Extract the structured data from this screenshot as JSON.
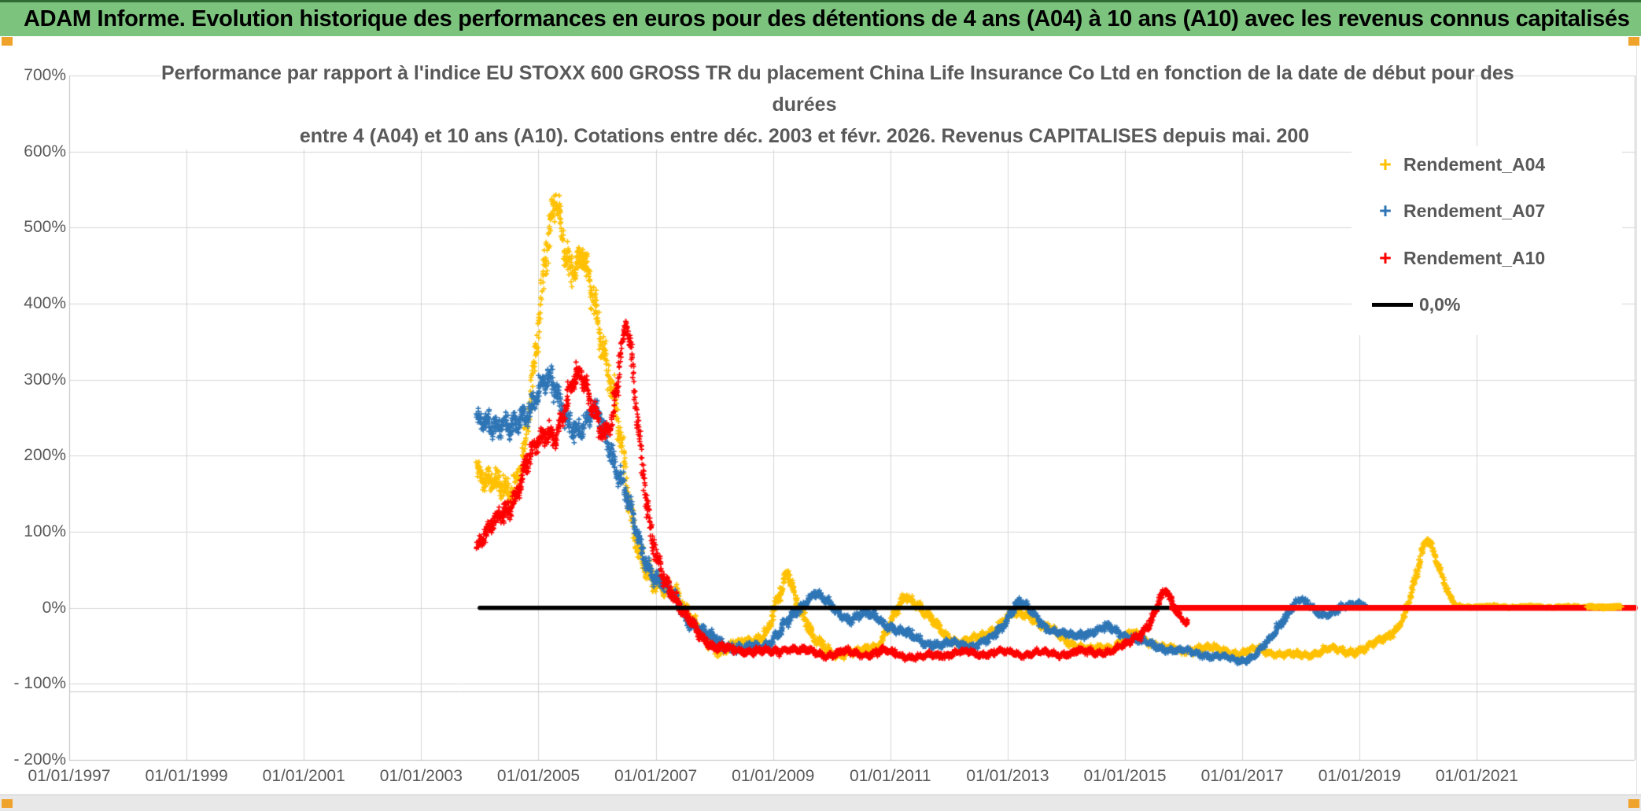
{
  "banner": {
    "text": "ADAM Informe. Evolution historique des performances en euros pour des détentions de 4 ans (A04) à 10 ans (A10) avec les revenus connus capitalisés",
    "bg_color": "#7CC47E"
  },
  "chart_data": {
    "type": "scatter",
    "title_lines": [
      "Performance par rapport à l'indice EU STOXX 600 GROSS TR  du placement China Life Insurance Co Ltd en fonction de la date de début pour des",
      "durées",
      "entre 4 (A04) et 10 ans (A10). Cotations entre déc. 2003 et févr. 2026. Revenus CAPITALISES depuis mai. 200"
    ],
    "x_range": [
      1997,
      2023.69
    ],
    "y_range": [
      -200,
      700
    ],
    "grid": true,
    "legend_position": "right-top",
    "x_ticks": [
      {
        "label": "01/01/1997",
        "year": 1997
      },
      {
        "label": "01/01/1999",
        "year": 1999
      },
      {
        "label": "01/01/2001",
        "year": 2001
      },
      {
        "label": "01/01/2003",
        "year": 2003
      },
      {
        "label": "01/01/2005",
        "year": 2005
      },
      {
        "label": "01/01/2007",
        "year": 2007
      },
      {
        "label": "01/01/2009",
        "year": 2009
      },
      {
        "label": "01/01/2011",
        "year": 2011
      },
      {
        "label": "01/01/2013",
        "year": 2013
      },
      {
        "label": "01/01/2015",
        "year": 2015
      },
      {
        "label": "01/01/2017",
        "year": 2017
      },
      {
        "label": "01/01/2019",
        "year": 2019
      },
      {
        "label": "01/01/2021",
        "year": 2021
      }
    ],
    "y_ticks": [
      {
        "label": "700%",
        "value": 700
      },
      {
        "label": "600%",
        "value": 600
      },
      {
        "label": "500%",
        "value": 500
      },
      {
        "label": "400%",
        "value": 400
      },
      {
        "label": "300%",
        "value": 300
      },
      {
        "label": "200%",
        "value": 200
      },
      {
        "label": "100%",
        "value": 100
      },
      {
        "label": "0%",
        "value": 0
      },
      {
        "label": "- 100%",
        "value": -100
      },
      {
        "label": "- 200%",
        "value": -200
      }
    ],
    "legend": [
      {
        "label": "Rendement_A04",
        "color": "#FFC000",
        "type": "marker"
      },
      {
        "label": "Rendement_A07",
        "color": "#2E75B6",
        "type": "marker"
      },
      {
        "label": "Rendement_A10",
        "color": "#FF0000",
        "type": "marker"
      },
      {
        "label": "0,0%",
        "color": "#000000",
        "type": "line"
      }
    ],
    "series": [
      {
        "name": "Rendement_A04",
        "color": "#FFC000",
        "marker": "+",
        "phase": 1,
        "density": 260,
        "seed": 11,
        "anchors": [
          [
            2003.95,
            190,
            35
          ],
          [
            2004.15,
            170,
            30
          ],
          [
            2004.35,
            155,
            30
          ],
          [
            2004.55,
            150,
            35
          ],
          [
            2004.75,
            215,
            40
          ],
          [
            2004.95,
            320,
            45
          ],
          [
            2005.1,
            440,
            50
          ],
          [
            2005.2,
            505,
            45
          ],
          [
            2005.3,
            550,
            40
          ],
          [
            2005.4,
            505,
            45
          ],
          [
            2005.5,
            455,
            40
          ],
          [
            2005.62,
            435,
            35
          ],
          [
            2005.75,
            455,
            35
          ],
          [
            2005.88,
            430,
            40
          ],
          [
            2006.0,
            395,
            40
          ],
          [
            2006.15,
            330,
            45
          ],
          [
            2006.35,
            235,
            45
          ],
          [
            2006.55,
            135,
            40
          ],
          [
            2006.75,
            75,
            30
          ],
          [
            2006.95,
            30,
            25
          ],
          [
            2007.15,
            20,
            20
          ],
          [
            2007.35,
            25,
            20
          ],
          [
            2007.55,
            -10,
            18
          ],
          [
            2007.8,
            -40,
            15
          ],
          [
            2008.1,
            -55,
            12
          ],
          [
            2008.5,
            -48,
            12
          ],
          [
            2008.9,
            -32,
            14
          ],
          [
            2009.1,
            10,
            20
          ],
          [
            2009.25,
            48,
            15
          ],
          [
            2009.45,
            5,
            18
          ],
          [
            2009.7,
            -45,
            14
          ],
          [
            2010.0,
            -58,
            10
          ],
          [
            2010.4,
            -60,
            9
          ],
          [
            2010.8,
            -48,
            10
          ],
          [
            2011.05,
            -15,
            14
          ],
          [
            2011.25,
            15,
            12
          ],
          [
            2011.45,
            8,
            12
          ],
          [
            2011.65,
            -12,
            12
          ],
          [
            2011.9,
            -35,
            10
          ],
          [
            2012.2,
            -45,
            10
          ],
          [
            2012.55,
            -40,
            10
          ],
          [
            2012.85,
            -22,
            10
          ],
          [
            2013.1,
            -8,
            10
          ],
          [
            2013.4,
            -10,
            10
          ],
          [
            2013.7,
            -28,
            10
          ],
          [
            2014.05,
            -45,
            9
          ],
          [
            2014.45,
            -57,
            8
          ],
          [
            2014.8,
            -50,
            9
          ],
          [
            2015.1,
            -35,
            10
          ],
          [
            2015.35,
            -42,
            9
          ],
          [
            2015.65,
            -52,
            8
          ],
          [
            2015.95,
            -58,
            8
          ],
          [
            2016.3,
            -52,
            9
          ],
          [
            2016.7,
            -57,
            8
          ],
          [
            2017.0,
            -60,
            8
          ],
          [
            2017.3,
            -55,
            8
          ],
          [
            2017.6,
            -60,
            7
          ],
          [
            2017.9,
            -63,
            7
          ],
          [
            2018.2,
            -60,
            8
          ],
          [
            2018.5,
            -55,
            8
          ],
          [
            2018.8,
            -57,
            8
          ],
          [
            2019.1,
            -55,
            8
          ],
          [
            2019.3,
            -45,
            9
          ],
          [
            2019.5,
            -35,
            9
          ],
          [
            2019.65,
            -25,
            9
          ],
          [
            2019.8,
            -5,
            12
          ],
          [
            2019.95,
            35,
            15
          ],
          [
            2020.05,
            70,
            15
          ],
          [
            2020.15,
            95,
            10
          ],
          [
            2020.25,
            80,
            12
          ],
          [
            2020.35,
            55,
            12
          ],
          [
            2020.45,
            30,
            10
          ],
          [
            2020.55,
            10,
            8
          ],
          [
            2020.65,
            2,
            3
          ],
          [
            2023.45,
            1,
            2
          ]
        ]
      },
      {
        "name": "Rendement_A07",
        "color": "#2E75B6",
        "marker": "+",
        "phase": 1,
        "density": 260,
        "seed": 22,
        "anchors": [
          [
            2003.95,
            245,
            30
          ],
          [
            2004.15,
            250,
            28
          ],
          [
            2004.35,
            240,
            28
          ],
          [
            2004.55,
            228,
            30
          ],
          [
            2004.75,
            252,
            30
          ],
          [
            2004.95,
            285,
            28
          ],
          [
            2005.1,
            295,
            30
          ],
          [
            2005.25,
            288,
            30
          ],
          [
            2005.4,
            262,
            28
          ],
          [
            2005.55,
            245,
            25
          ],
          [
            2005.7,
            232,
            25
          ],
          [
            2005.85,
            242,
            25
          ],
          [
            2006.0,
            258,
            25
          ],
          [
            2006.15,
            230,
            28
          ],
          [
            2006.35,
            185,
            30
          ],
          [
            2006.55,
            128,
            28
          ],
          [
            2006.75,
            78,
            25
          ],
          [
            2006.95,
            48,
            20
          ],
          [
            2007.15,
            28,
            18
          ],
          [
            2007.35,
            8,
            16
          ],
          [
            2007.6,
            -18,
            14
          ],
          [
            2007.85,
            -35,
            12
          ],
          [
            2008.15,
            -48,
            11
          ],
          [
            2008.5,
            -55,
            10
          ],
          [
            2008.85,
            -50,
            11
          ],
          [
            2009.1,
            -32,
            13
          ],
          [
            2009.35,
            -12,
            13
          ],
          [
            2009.55,
            8,
            12
          ],
          [
            2009.7,
            22,
            10
          ],
          [
            2009.85,
            12,
            11
          ],
          [
            2010.05,
            -4,
            11
          ],
          [
            2010.3,
            -14,
            10
          ],
          [
            2010.55,
            -8,
            11
          ],
          [
            2010.8,
            -14,
            10
          ],
          [
            2011.05,
            -26,
            10
          ],
          [
            2011.3,
            -36,
            9
          ],
          [
            2011.55,
            -44,
            9
          ],
          [
            2011.85,
            -50,
            8
          ],
          [
            2012.15,
            -46,
            9
          ],
          [
            2012.45,
            -50,
            8
          ],
          [
            2012.7,
            -42,
            9
          ],
          [
            2012.9,
            -25,
            10
          ],
          [
            2013.05,
            -5,
            10
          ],
          [
            2013.2,
            8,
            8
          ],
          [
            2013.35,
            -2,
            9
          ],
          [
            2013.55,
            -18,
            9
          ],
          [
            2013.8,
            -32,
            9
          ],
          [
            2014.1,
            -38,
            8
          ],
          [
            2014.4,
            -32,
            9
          ],
          [
            2014.7,
            -27,
            9
          ],
          [
            2014.95,
            -33,
            8
          ],
          [
            2015.2,
            -42,
            8
          ],
          [
            2015.5,
            -50,
            8
          ],
          [
            2015.8,
            -55,
            7
          ],
          [
            2016.1,
            -58,
            7
          ],
          [
            2016.4,
            -62,
            7
          ],
          [
            2016.7,
            -66,
            6
          ],
          [
            2016.95,
            -69,
            6
          ],
          [
            2017.2,
            -64,
            7
          ],
          [
            2017.45,
            -45,
            9
          ],
          [
            2017.65,
            -20,
            10
          ],
          [
            2017.85,
            2,
            9
          ],
          [
            2018.0,
            10,
            7
          ],
          [
            2018.15,
            2,
            8
          ],
          [
            2018.35,
            -8,
            8
          ],
          [
            2018.6,
            -4,
            8
          ],
          [
            2018.85,
            3,
            7
          ],
          [
            2019.0,
            8,
            6
          ],
          [
            2019.1,
            5,
            5
          ]
        ]
      },
      {
        "name": "Rendement_A10",
        "color": "#FF0000",
        "marker": "+",
        "phase": 1,
        "density": 260,
        "seed": 33,
        "anchors": [
          [
            2003.95,
            80,
            18
          ],
          [
            2004.15,
            98,
            20
          ],
          [
            2004.35,
            120,
            22
          ],
          [
            2004.6,
            150,
            25
          ],
          [
            2004.8,
            185,
            28
          ],
          [
            2005.0,
            215,
            28
          ],
          [
            2005.15,
            238,
            26
          ],
          [
            2005.3,
            228,
            26
          ],
          [
            2005.45,
            258,
            28
          ],
          [
            2005.6,
            295,
            28
          ],
          [
            2005.72,
            308,
            25
          ],
          [
            2005.85,
            288,
            26
          ],
          [
            2006.0,
            255,
            26
          ],
          [
            2006.1,
            222,
            24
          ],
          [
            2006.25,
            235,
            26
          ],
          [
            2006.4,
            330,
            35
          ],
          [
            2006.5,
            385,
            22
          ],
          [
            2006.6,
            330,
            30
          ],
          [
            2006.75,
            195,
            35
          ],
          [
            2006.9,
            95,
            30
          ],
          [
            2007.05,
            55,
            22
          ],
          [
            2007.25,
            28,
            18
          ],
          [
            2007.45,
            -5,
            16
          ],
          [
            2007.7,
            -32,
            13
          ],
          [
            2008.0,
            -50,
            11
          ],
          [
            2008.35,
            -58,
            9
          ],
          [
            2008.7,
            -55,
            9
          ],
          [
            2009.0,
            -60,
            8
          ],
          [
            2009.3,
            -52,
            9
          ],
          [
            2009.6,
            -58,
            8
          ],
          [
            2009.9,
            -62,
            7
          ],
          [
            2010.2,
            -58,
            8
          ],
          [
            2010.5,
            -62,
            7
          ],
          [
            2010.85,
            -57,
            8
          ],
          [
            2011.15,
            -62,
            7
          ],
          [
            2011.5,
            -65,
            6
          ],
          [
            2011.85,
            -62,
            7
          ],
          [
            2012.2,
            -58,
            7
          ],
          [
            2012.5,
            -62,
            7
          ],
          [
            2012.85,
            -57,
            7
          ],
          [
            2013.2,
            -62,
            7
          ],
          [
            2013.5,
            -58,
            7
          ],
          [
            2013.85,
            -62,
            7
          ],
          [
            2014.2,
            -57,
            7
          ],
          [
            2014.5,
            -60,
            7
          ],
          [
            2014.8,
            -55,
            7
          ],
          [
            2015.05,
            -48,
            8
          ],
          [
            2015.25,
            -35,
            9
          ],
          [
            2015.45,
            -15,
            10
          ],
          [
            2015.6,
            12,
            10
          ],
          [
            2015.7,
            22,
            8
          ],
          [
            2015.8,
            5,
            8
          ],
          [
            2015.95,
            -12,
            8
          ],
          [
            2016.08,
            -18,
            6
          ]
        ]
      },
      {
        "name": "Rendement_A04_flat_tail",
        "color": "#FFC000",
        "marker": "+",
        "phase": 2,
        "density": 420,
        "seed": 44,
        "anchors": [
          [
            2022.88,
            1,
            2
          ],
          [
            2023.45,
            1,
            2
          ]
        ]
      }
    ],
    "lines": [
      {
        "name": "zero-line",
        "label": "0,0%",
        "color": "#000000",
        "width": 5.5,
        "y": 0,
        "from": 2004.0,
        "to": 2023.69
      },
      {
        "name": "a10-flat-zero-tail",
        "color": "#FF0000",
        "width": 7.5,
        "y": 0,
        "from": 2015.8,
        "to": 2023.69
      }
    ],
    "colors": {
      "grid": "#D6D6D6",
      "axis": "#BFBFBF",
      "tick_text": "#595959"
    }
  }
}
